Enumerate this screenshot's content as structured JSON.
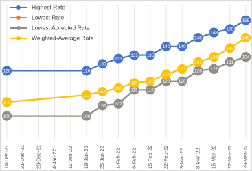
{
  "chart_data": {
    "type": "line",
    "x": [
      "14-Dec-21",
      "18-Jan-22",
      "25-Jan-22",
      "1-Feb-22",
      "8-Feb-22",
      "15-Feb-22",
      "22-Feb-22",
      "3-Mar-22",
      "8-Mar-22",
      "15-Mar-22",
      "22-Mar-22",
      "29-Mar-22"
    ],
    "xticks": [
      "14-Dec-21",
      "21-Dec-21",
      "28-Dec-21",
      "4-Jan-22",
      "11-Jan-22",
      "18-Jan-22",
      "25-Jan-22",
      "1-Feb-22",
      "8-Feb-22",
      "15-Feb-22",
      "22-Feb-22",
      "3-Mar-22",
      "8-Mar-22",
      "15-Mar-22",
      "22-Mar-22",
      "29-Mar-22"
    ],
    "ylim": [
      90,
      160
    ],
    "grid": true,
    "legend": "top-left",
    "series": [
      {
        "name": "Highest Rate",
        "color": "#4472c4",
        "values": [
          126,
          126,
          130,
          133,
          135,
          135,
          140,
          140,
          145,
          148,
          150,
          155
        ]
      },
      {
        "name": "Lowest Rate",
        "color": "#ed7d31",
        "values": [
          100,
          100,
          106,
          107,
          115,
          115,
          120,
          120,
          126,
          127,
          131,
          134
        ]
      },
      {
        "name": "Lowest Accepted Rate",
        "color": "#8c8c8c",
        "values": [
          100,
          100,
          106,
          107,
          115,
          115,
          120,
          120,
          126,
          127,
          131,
          134
        ]
      },
      {
        "name": "Weighted-Average Rate",
        "color": "#ffc000",
        "values": [
          108,
          112,
          114,
          116,
          119,
          120,
          124,
          127,
          131,
          134,
          139,
          145
        ]
      }
    ]
  }
}
